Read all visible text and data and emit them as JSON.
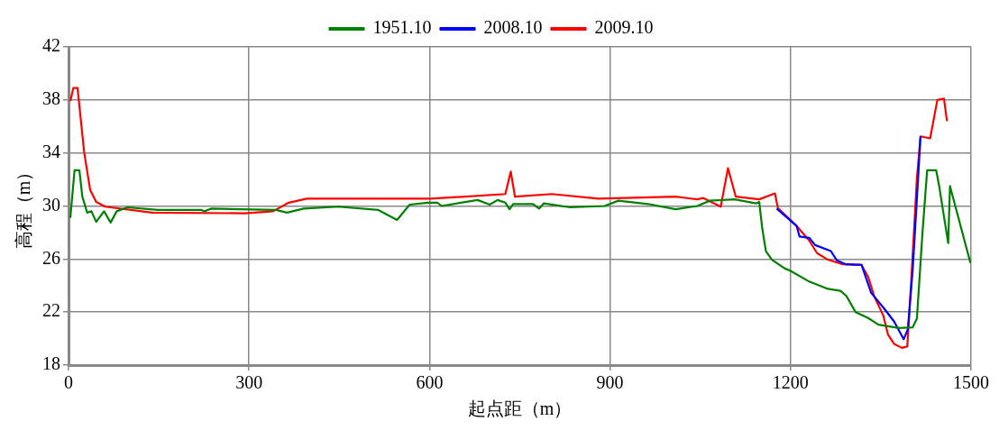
{
  "chart_data": {
    "type": "line",
    "xlabel": "起点距（m）",
    "ylabel": "高程（m）",
    "xlim": [
      0,
      1500
    ],
    "xticks": [
      0,
      300,
      600,
      900,
      1200,
      1500
    ],
    "ylim": [
      18,
      42
    ],
    "yticks": [
      18,
      22,
      26,
      30,
      34,
      38,
      42
    ],
    "grid": true,
    "legend": "top",
    "marker": "none",
    "line_style": "solid",
    "series": [
      {
        "name": "1951.10",
        "color": "#008000",
        "x": [
          3,
          10,
          18,
          23,
          31,
          38,
          46,
          59,
          70,
          80,
          98,
          149,
          221,
          226,
          237,
          345,
          363,
          391,
          448,
          515,
          546,
          567,
          597,
          613,
          620,
          680,
          700,
          713,
          726,
          733,
          739,
          772,
          782,
          790,
          834,
          891,
          914,
          963,
          1009,
          1045,
          1066,
          1107,
          1143,
          1148,
          1153,
          1159,
          1169,
          1190,
          1200,
          1231,
          1262,
          1283,
          1293,
          1308,
          1329,
          1346,
          1380,
          1403,
          1410,
          1419,
          1427,
          1442,
          1447,
          1462,
          1465,
          1499
        ],
        "values": [
          29.1,
          32.7,
          32.7,
          30.7,
          29.5,
          29.6,
          28.8,
          29.6,
          28.75,
          29.6,
          29.9,
          29.7,
          29.7,
          29.6,
          29.8,
          29.7,
          29.5,
          29.8,
          29.95,
          29.7,
          28.95,
          30.1,
          30.25,
          30.25,
          30.0,
          30.45,
          30.1,
          30.45,
          30.25,
          29.75,
          30.15,
          30.15,
          29.8,
          30.2,
          29.9,
          30.0,
          30.4,
          30.15,
          29.75,
          30.0,
          30.4,
          30.5,
          30.2,
          30.3,
          28.3,
          26.6,
          25.95,
          25.3,
          25.1,
          24.3,
          23.75,
          23.6,
          23.2,
          22.0,
          21.55,
          21.05,
          20.8,
          20.85,
          21.5,
          27.8,
          32.7,
          32.7,
          31.5,
          27.2,
          31.5,
          25.7
        ]
      },
      {
        "name": "2008.10",
        "color": "#0000ff",
        "x": [
          1177,
          1210,
          1215,
          1231,
          1241,
          1267,
          1277,
          1292,
          1318,
          1334,
          1354,
          1372,
          1388,
          1395,
          1403,
          1412,
          1416
        ],
        "values": [
          29.8,
          28.5,
          27.7,
          27.6,
          27.05,
          26.6,
          25.9,
          25.6,
          25.55,
          23.45,
          22.35,
          21.3,
          19.95,
          20.7,
          25.2,
          32.1,
          35.25
        ]
      },
      {
        "name": "2009.10",
        "color": "#ff0000",
        "x": [
          3,
          8,
          15,
          26,
          36,
          46,
          61,
          139,
          293,
          340,
          366,
          396,
          602,
          726,
          735,
          742,
          803,
          881,
          1009,
          1045,
          1055,
          1084,
          1096,
          1109,
          1148,
          1174,
          1179,
          1210,
          1231,
          1244,
          1262,
          1287,
          1318,
          1329,
          1339,
          1354,
          1362,
          1372,
          1385,
          1394,
          1401,
          1410,
          1416,
          1432,
          1444,
          1455,
          1460
        ],
        "values": [
          37.9,
          38.9,
          38.9,
          34.05,
          31.2,
          30.3,
          29.95,
          29.5,
          29.45,
          29.6,
          30.25,
          30.55,
          30.55,
          30.9,
          32.6,
          30.7,
          30.9,
          30.55,
          30.7,
          30.5,
          30.6,
          29.95,
          32.85,
          30.7,
          30.5,
          30.95,
          29.85,
          28.5,
          27.4,
          26.45,
          25.95,
          25.6,
          25.55,
          24.65,
          23.2,
          21.75,
          20.3,
          19.6,
          19.3,
          19.4,
          24.65,
          32.1,
          35.25,
          35.1,
          38.0,
          38.1,
          36.4
        ]
      }
    ]
  }
}
